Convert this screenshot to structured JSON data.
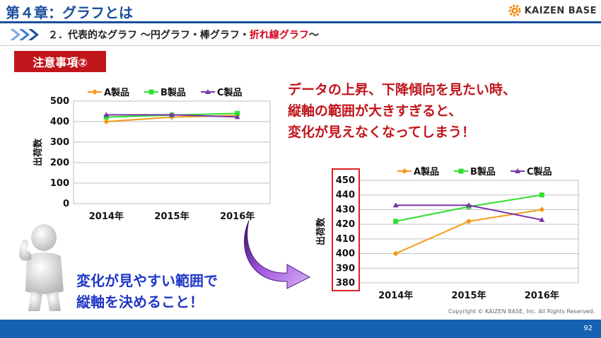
{
  "header": {
    "chapter_title": "第４章：グラフとは",
    "logo_text": "KAIZEN BASE",
    "logo_icon": "gear-icon"
  },
  "section": {
    "text_prefix": "２．代表的なグラフ ～円グラフ・棒グラフ・",
    "text_highlight": "折れ線グラフ",
    "text_suffix": "～",
    "highlight_color": "#d6001c",
    "arrow_icon": "chevron-arrows-icon"
  },
  "note_badge": "注意事項②",
  "callout": {
    "line1": "データの上昇、下降傾向を見たい時、",
    "line2": "縦軸の範囲が大きすぎると、",
    "line3": "変化が見えなくなってしまう！"
  },
  "bottom_text": {
    "line1": "変化が見やすい範囲で",
    "line2": "縦軸を決めること！"
  },
  "copyright": "Copyright ©  KAIZEN BASE, Inc.  All Rights Reserved.",
  "page_number": "92",
  "colors": {
    "header_blue": "#1c4f9c",
    "footer_blue": "#1761b3",
    "badge_red": "#c0151b",
    "series_a": "#f59a1a",
    "series_b": "#2fe02f",
    "series_c": "#7a35a8"
  },
  "chart_data": [
    {
      "type": "line",
      "categories": [
        "2014年",
        "2015年",
        "2016年"
      ],
      "series": [
        {
          "name": "A製品",
          "values": [
            400,
            422,
            430
          ]
        },
        {
          "name": "B製品",
          "values": [
            422,
            432,
            440
          ]
        },
        {
          "name": "C製品",
          "values": [
            433,
            433,
            423
          ]
        }
      ],
      "ylabel": "出荷数",
      "ylim": [
        0,
        500
      ],
      "yticks": [
        "0",
        "100",
        "200",
        "300",
        "400",
        "500"
      ],
      "legend": "top",
      "grid": true
    },
    {
      "type": "line",
      "categories": [
        "2014年",
        "2015年",
        "2016年"
      ],
      "series": [
        {
          "name": "A製品",
          "values": [
            400,
            422,
            430
          ]
        },
        {
          "name": "B製品",
          "values": [
            422,
            432,
            440
          ]
        },
        {
          "name": "C製品",
          "values": [
            433,
            433,
            423
          ]
        }
      ],
      "ylabel": "出荷数",
      "ylim": [
        380,
        450
      ],
      "yticks": [
        "380",
        "390",
        "400",
        "410",
        "420",
        "430",
        "440",
        "450"
      ],
      "legend": "top",
      "grid": true
    }
  ]
}
